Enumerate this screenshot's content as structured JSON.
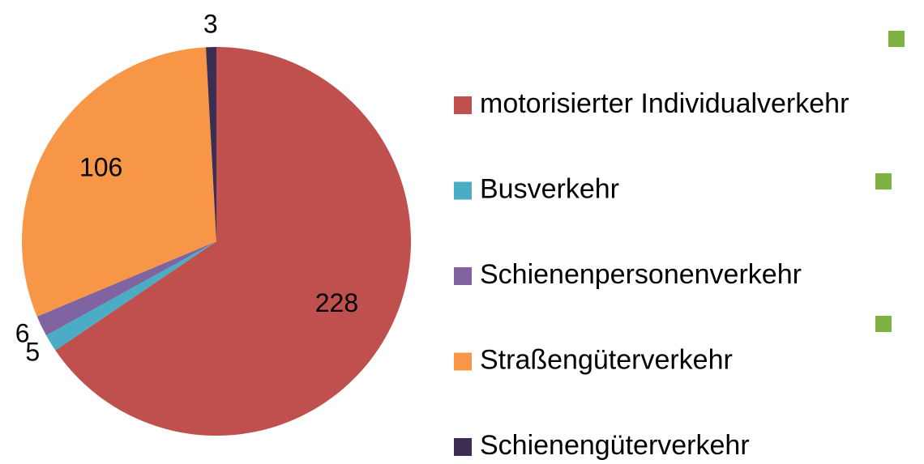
{
  "chart_data": {
    "type": "pie",
    "categories": [
      "motorisierter Individualverkehr",
      "Busverkehr",
      "Schienenpersonenverkehr",
      "Straßengüterverkehr",
      "Schienengüterverkehr"
    ],
    "values": [
      228,
      5,
      6,
      106,
      3
    ],
    "colors": [
      "#c0504d",
      "#4bacc6",
      "#8064a2",
      "#f79646",
      "#3b2e52"
    ],
    "legend": "right"
  }
}
